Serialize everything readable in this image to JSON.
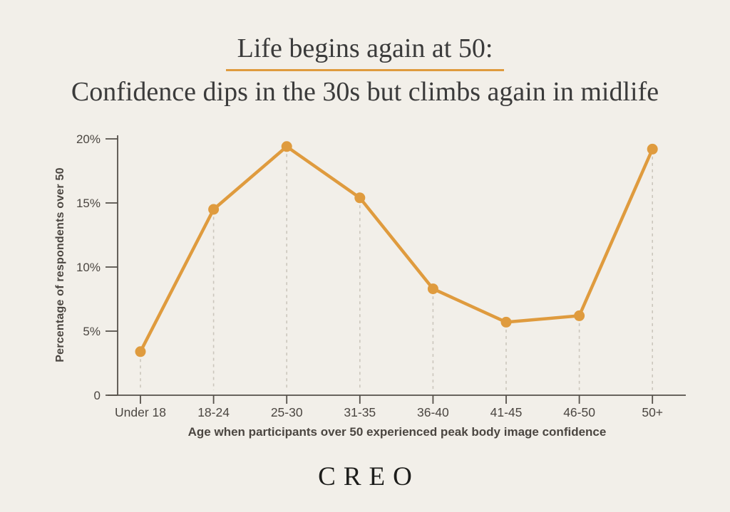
{
  "header": {
    "title_line1": "Life begins again at 50:",
    "title_line2": "Confidence dips in the 30s but climbs again in midlife"
  },
  "chart_data": {
    "type": "line",
    "categories": [
      "Under 18",
      "18-24",
      "25-30",
      "31-35",
      "36-40",
      "41-45",
      "46-50",
      "50+"
    ],
    "values": [
      3.4,
      14.5,
      19.4,
      15.4,
      8.3,
      5.7,
      6.2,
      19.2
    ],
    "series_name": "Percentage of respondents over 50",
    "title": "Life begins again at 50: Confidence dips in the 30s but climbs again in midlife",
    "xlabel": "Age when participants over 50 experienced peak body image confidence",
    "ylabel": "Percentage of respondents over 50",
    "ylim": [
      0,
      20
    ],
    "y_ticks": [
      {
        "value": 0,
        "label": "0"
      },
      {
        "value": 5,
        "label": "5%"
      },
      {
        "value": 10,
        "label": "10%"
      },
      {
        "value": 15,
        "label": "15%"
      },
      {
        "value": 20,
        "label": "20%"
      }
    ],
    "grid": "dashed-droplines-only",
    "legend_position": "none",
    "marker": "circle"
  },
  "colors": {
    "background": "#F2EFE9",
    "accent_orange": "#DF9B3E",
    "title_text": "#3B3B3B",
    "axis_text": "#4B4641",
    "axis_line": "#55504A",
    "dropline": "#CBC6BC"
  },
  "footer": {
    "logo": "CREO"
  }
}
